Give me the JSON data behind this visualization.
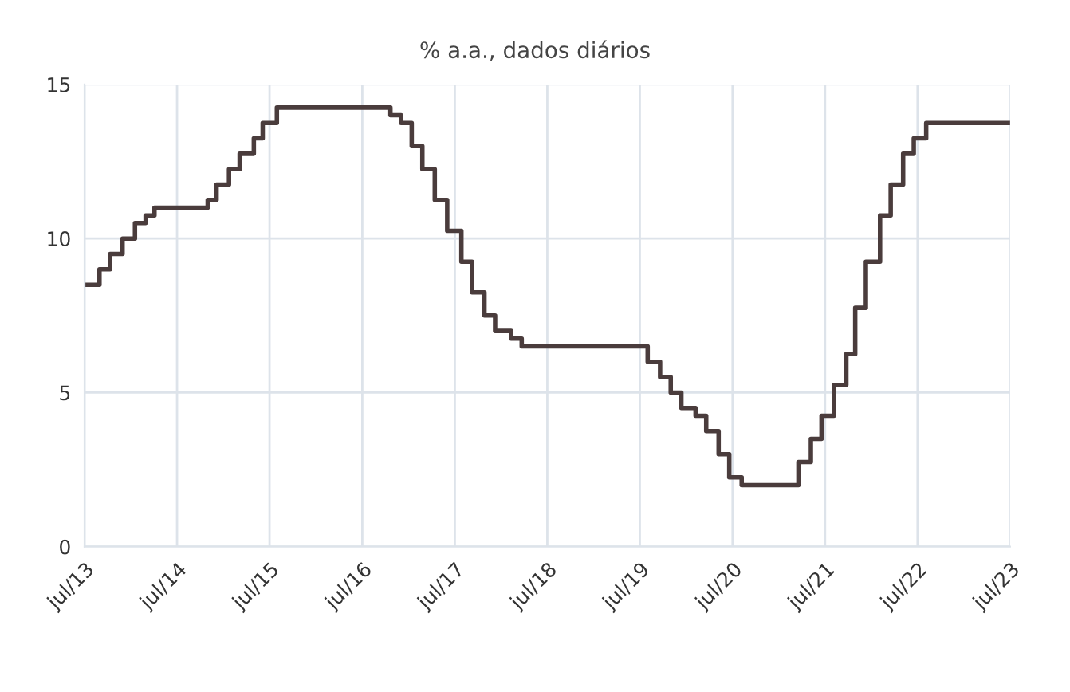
{
  "chart_data": {
    "type": "step",
    "title": "% a.a., dados diários",
    "x": [
      "2013-07-10",
      "2013-08-29",
      "2013-10-10",
      "2013-11-28",
      "2014-01-16",
      "2014-02-27",
      "2014-04-03",
      "2014-10-30",
      "2014-12-04",
      "2015-01-22",
      "2015-03-05",
      "2015-04-30",
      "2015-06-04",
      "2015-07-30",
      "2016-10-20",
      "2016-12-01",
      "2017-01-12",
      "2017-02-23",
      "2017-04-13",
      "2017-06-01",
      "2017-07-27",
      "2017-09-07",
      "2017-10-26",
      "2017-12-07",
      "2018-02-08",
      "2018-03-22",
      "2019-08-01",
      "2019-09-19",
      "2019-10-31",
      "2019-12-12",
      "2020-02-06",
      "2020-03-19",
      "2020-05-07",
      "2020-06-18",
      "2020-08-06",
      "2021-03-18",
      "2021-05-06",
      "2021-06-17",
      "2021-08-05",
      "2021-09-23",
      "2021-10-28",
      "2021-12-09",
      "2022-02-03",
      "2022-03-17",
      "2022-05-05",
      "2022-06-16",
      "2022-08-04",
      "2023-07-01"
    ],
    "series": [
      {
        "color": "#4a3c3c",
        "values": [
          8.5,
          9,
          9.5,
          10,
          10.5,
          10.75,
          11,
          11.25,
          11.75,
          12.25,
          12.75,
          13.25,
          13.75,
          14.25,
          14,
          13.75,
          13,
          12.25,
          11.25,
          10.25,
          9.25,
          8.25,
          7.5,
          7,
          6.75,
          6.5,
          6,
          5.5,
          5,
          4.5,
          4.25,
          3.75,
          3,
          2.25,
          2,
          2.75,
          3.5,
          4.25,
          5.25,
          6.25,
          7.75,
          9.25,
          10.75,
          11.75,
          12.75,
          13.25,
          13.75,
          13.75
        ]
      }
    ],
    "xlim": [
      "2013-07-01",
      "2023-07-01"
    ],
    "xticks": [
      {
        "value": "2013-07-01",
        "label": "jul/13"
      },
      {
        "value": "2014-07-01",
        "label": "jul/14"
      },
      {
        "value": "2015-07-01",
        "label": "jul/15"
      },
      {
        "value": "2016-07-01",
        "label": "jul/16"
      },
      {
        "value": "2017-07-01",
        "label": "jul/17"
      },
      {
        "value": "2018-07-01",
        "label": "jul/18"
      },
      {
        "value": "2019-07-01",
        "label": "jul/19"
      },
      {
        "value": "2020-07-01",
        "label": "jul/20"
      },
      {
        "value": "2021-07-01",
        "label": "jul/21"
      },
      {
        "value": "2022-07-01",
        "label": "jul/22"
      },
      {
        "value": "2023-07-01",
        "label": "jul/23"
      }
    ],
    "ylim": [
      0,
      15
    ],
    "yticks": [
      0,
      5,
      10,
      15
    ],
    "grid": true
  }
}
